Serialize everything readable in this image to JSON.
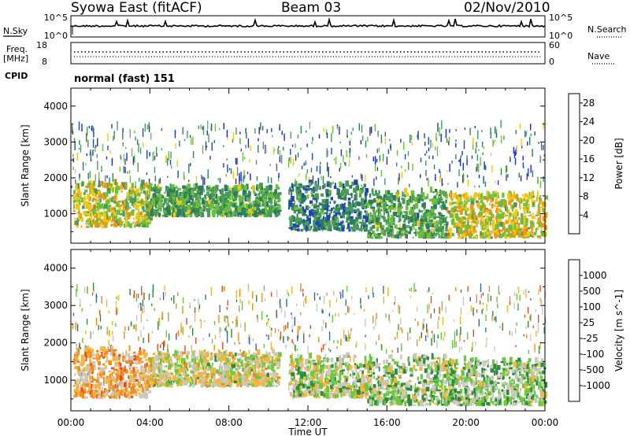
{
  "header": {
    "title": "Syowa East (fitACF)",
    "beam": "Beam 03",
    "date": "02/Nov/2010"
  },
  "status_panel": {
    "nsky_label": "N.Sky",
    "nsky_ticks": [
      "10^5",
      "10^0"
    ],
    "nsearch_label": "N.Search",
    "freq_label": "Freq.",
    "freq_unit": "[MHz]",
    "freq_ticks": [
      "18",
      "8"
    ],
    "nave_label": "Nave",
    "nave_ticks": [
      "60",
      "0"
    ],
    "cpid_label": "CPID",
    "cpid_value": "normal (fast) 151"
  },
  "colors": {
    "power_scale": [
      "#1428e6",
      "#1e46b4",
      "#2e7d5a",
      "#4a9a5a",
      "#6cbf3c",
      "#f0c814",
      "#f09614",
      "#e65a14",
      "#dc1414"
    ],
    "velocity_scale": [
      "#dc1414",
      "#e6501e",
      "#f08c1e",
      "#f5b43c",
      "#c8c8c0",
      "#6cc83c",
      "#2e8b3c",
      "#2e6aa0",
      "#1e32c8"
    ]
  },
  "chart_data": [
    {
      "type": "heatmap",
      "name": "power",
      "xlabel": "",
      "ylabel": "Slant Range [km]",
      "x_ticks": [
        "00:00",
        "04:00",
        "08:00",
        "12:00",
        "16:00",
        "20:00",
        "00:00"
      ],
      "y_ticks": [
        "1000",
        "2000",
        "3000",
        "4000"
      ],
      "ylim": [
        180,
        4500
      ],
      "colorbar": {
        "label": "Power [dB]",
        "ticks": [
          "4",
          "8",
          "12",
          "16",
          "20",
          "24",
          "28"
        ],
        "range": [
          0,
          30
        ]
      },
      "echo_regions": [
        {
          "t_start": 0.1,
          "t_end": 4.0,
          "r_min": 600,
          "r_max": 1800,
          "value": 17
        },
        {
          "t_start": 4.0,
          "t_end": 10.5,
          "r_min": 900,
          "r_max": 1700,
          "value": 12
        },
        {
          "t_start": 11.0,
          "t_end": 15.0,
          "r_min": 500,
          "r_max": 1800,
          "value": 9
        },
        {
          "t_start": 15.0,
          "t_end": 19.0,
          "r_min": 300,
          "r_max": 1600,
          "value": 12
        },
        {
          "t_start": 19.0,
          "t_end": 24.0,
          "r_min": 300,
          "r_max": 1500,
          "value": 18
        }
      ]
    },
    {
      "type": "heatmap",
      "name": "velocity",
      "xlabel": "Time UT",
      "ylabel": "Slant Range [km]",
      "x_ticks": [
        "00:00",
        "04:00",
        "08:00",
        "12:00",
        "16:00",
        "20:00",
        "00:00"
      ],
      "y_ticks": [
        "1000",
        "2000",
        "3000",
        "4000"
      ],
      "ylim": [
        180,
        4500
      ],
      "colorbar": {
        "label": "Velocity [m s^-1]",
        "ticks": [
          "1000",
          "500",
          "100",
          "25",
          "-25",
          "-100",
          "-500",
          "-1000"
        ],
        "range": [
          -1100,
          1100
        ]
      },
      "echo_regions": [
        {
          "t_start": 0.1,
          "t_end": 4.0,
          "r_min": 500,
          "r_max": 1800,
          "value": -300
        },
        {
          "t_start": 4.0,
          "t_end": 10.5,
          "r_min": 800,
          "r_max": 1700,
          "value": 0
        },
        {
          "t_start": 11.0,
          "t_end": 15.0,
          "r_min": 500,
          "r_max": 1600,
          "value": 80
        },
        {
          "t_start": 15.0,
          "t_end": 19.0,
          "r_min": 300,
          "r_max": 1600,
          "value": 150
        },
        {
          "t_start": 19.0,
          "t_end": 24.0,
          "r_min": 300,
          "r_max": 1500,
          "value": 200
        }
      ]
    }
  ]
}
